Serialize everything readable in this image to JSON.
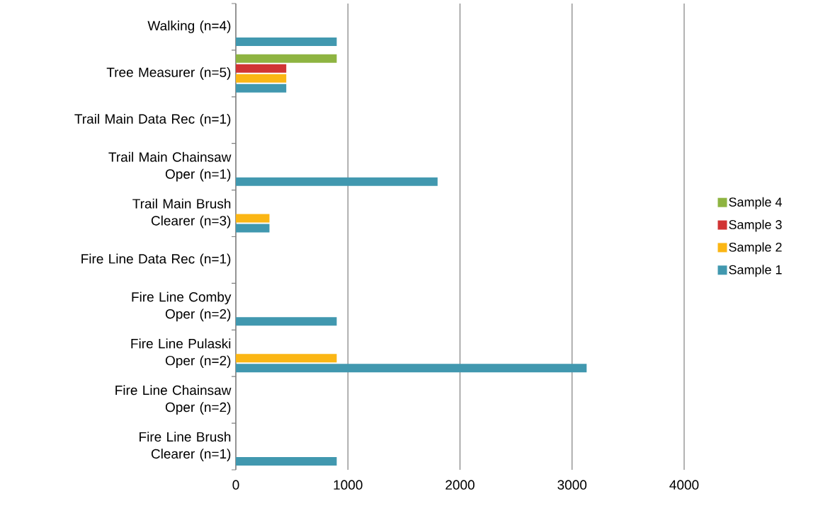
{
  "chart_data": {
    "type": "bar",
    "orientation": "horizontal",
    "categories": [
      "Walking (n=4)",
      "Tree Measurer (n=5)",
      "Trail Main Data Rec (n=1)",
      "Trail Main Chainsaw Oper (n=1)",
      "Trail Main Brush Clearer (n=3)",
      "Fire Line Data Rec (n=1)",
      "Fire Line Comby Oper (n=2)",
      "Fire Line Pulaski Oper (n=2)",
      "Fire Line Chainsaw Oper (n=2)",
      "Fire Line Brush Clearer (n=1)"
    ],
    "series": [
      {
        "name": "Sample 1",
        "color": "#4198af",
        "values": [
          900,
          450,
          null,
          1800,
          300,
          null,
          900,
          3130,
          null,
          900
        ]
      },
      {
        "name": "Sample 2",
        "color": "#fbb614",
        "values": [
          null,
          450,
          null,
          null,
          300,
          null,
          null,
          900,
          null,
          null
        ]
      },
      {
        "name": "Sample 3",
        "color": "#d13434",
        "values": [
          null,
          450,
          null,
          null,
          null,
          null,
          null,
          null,
          null,
          null
        ]
      },
      {
        "name": "Sample 4",
        "color": "#8eb441",
        "values": [
          null,
          900,
          null,
          null,
          null,
          null,
          null,
          null,
          null,
          null
        ]
      }
    ],
    "xlim": [
      0,
      4000
    ],
    "xticks": [
      0,
      1000,
      2000,
      3000,
      4000
    ],
    "grid": "x",
    "legend": "right"
  }
}
